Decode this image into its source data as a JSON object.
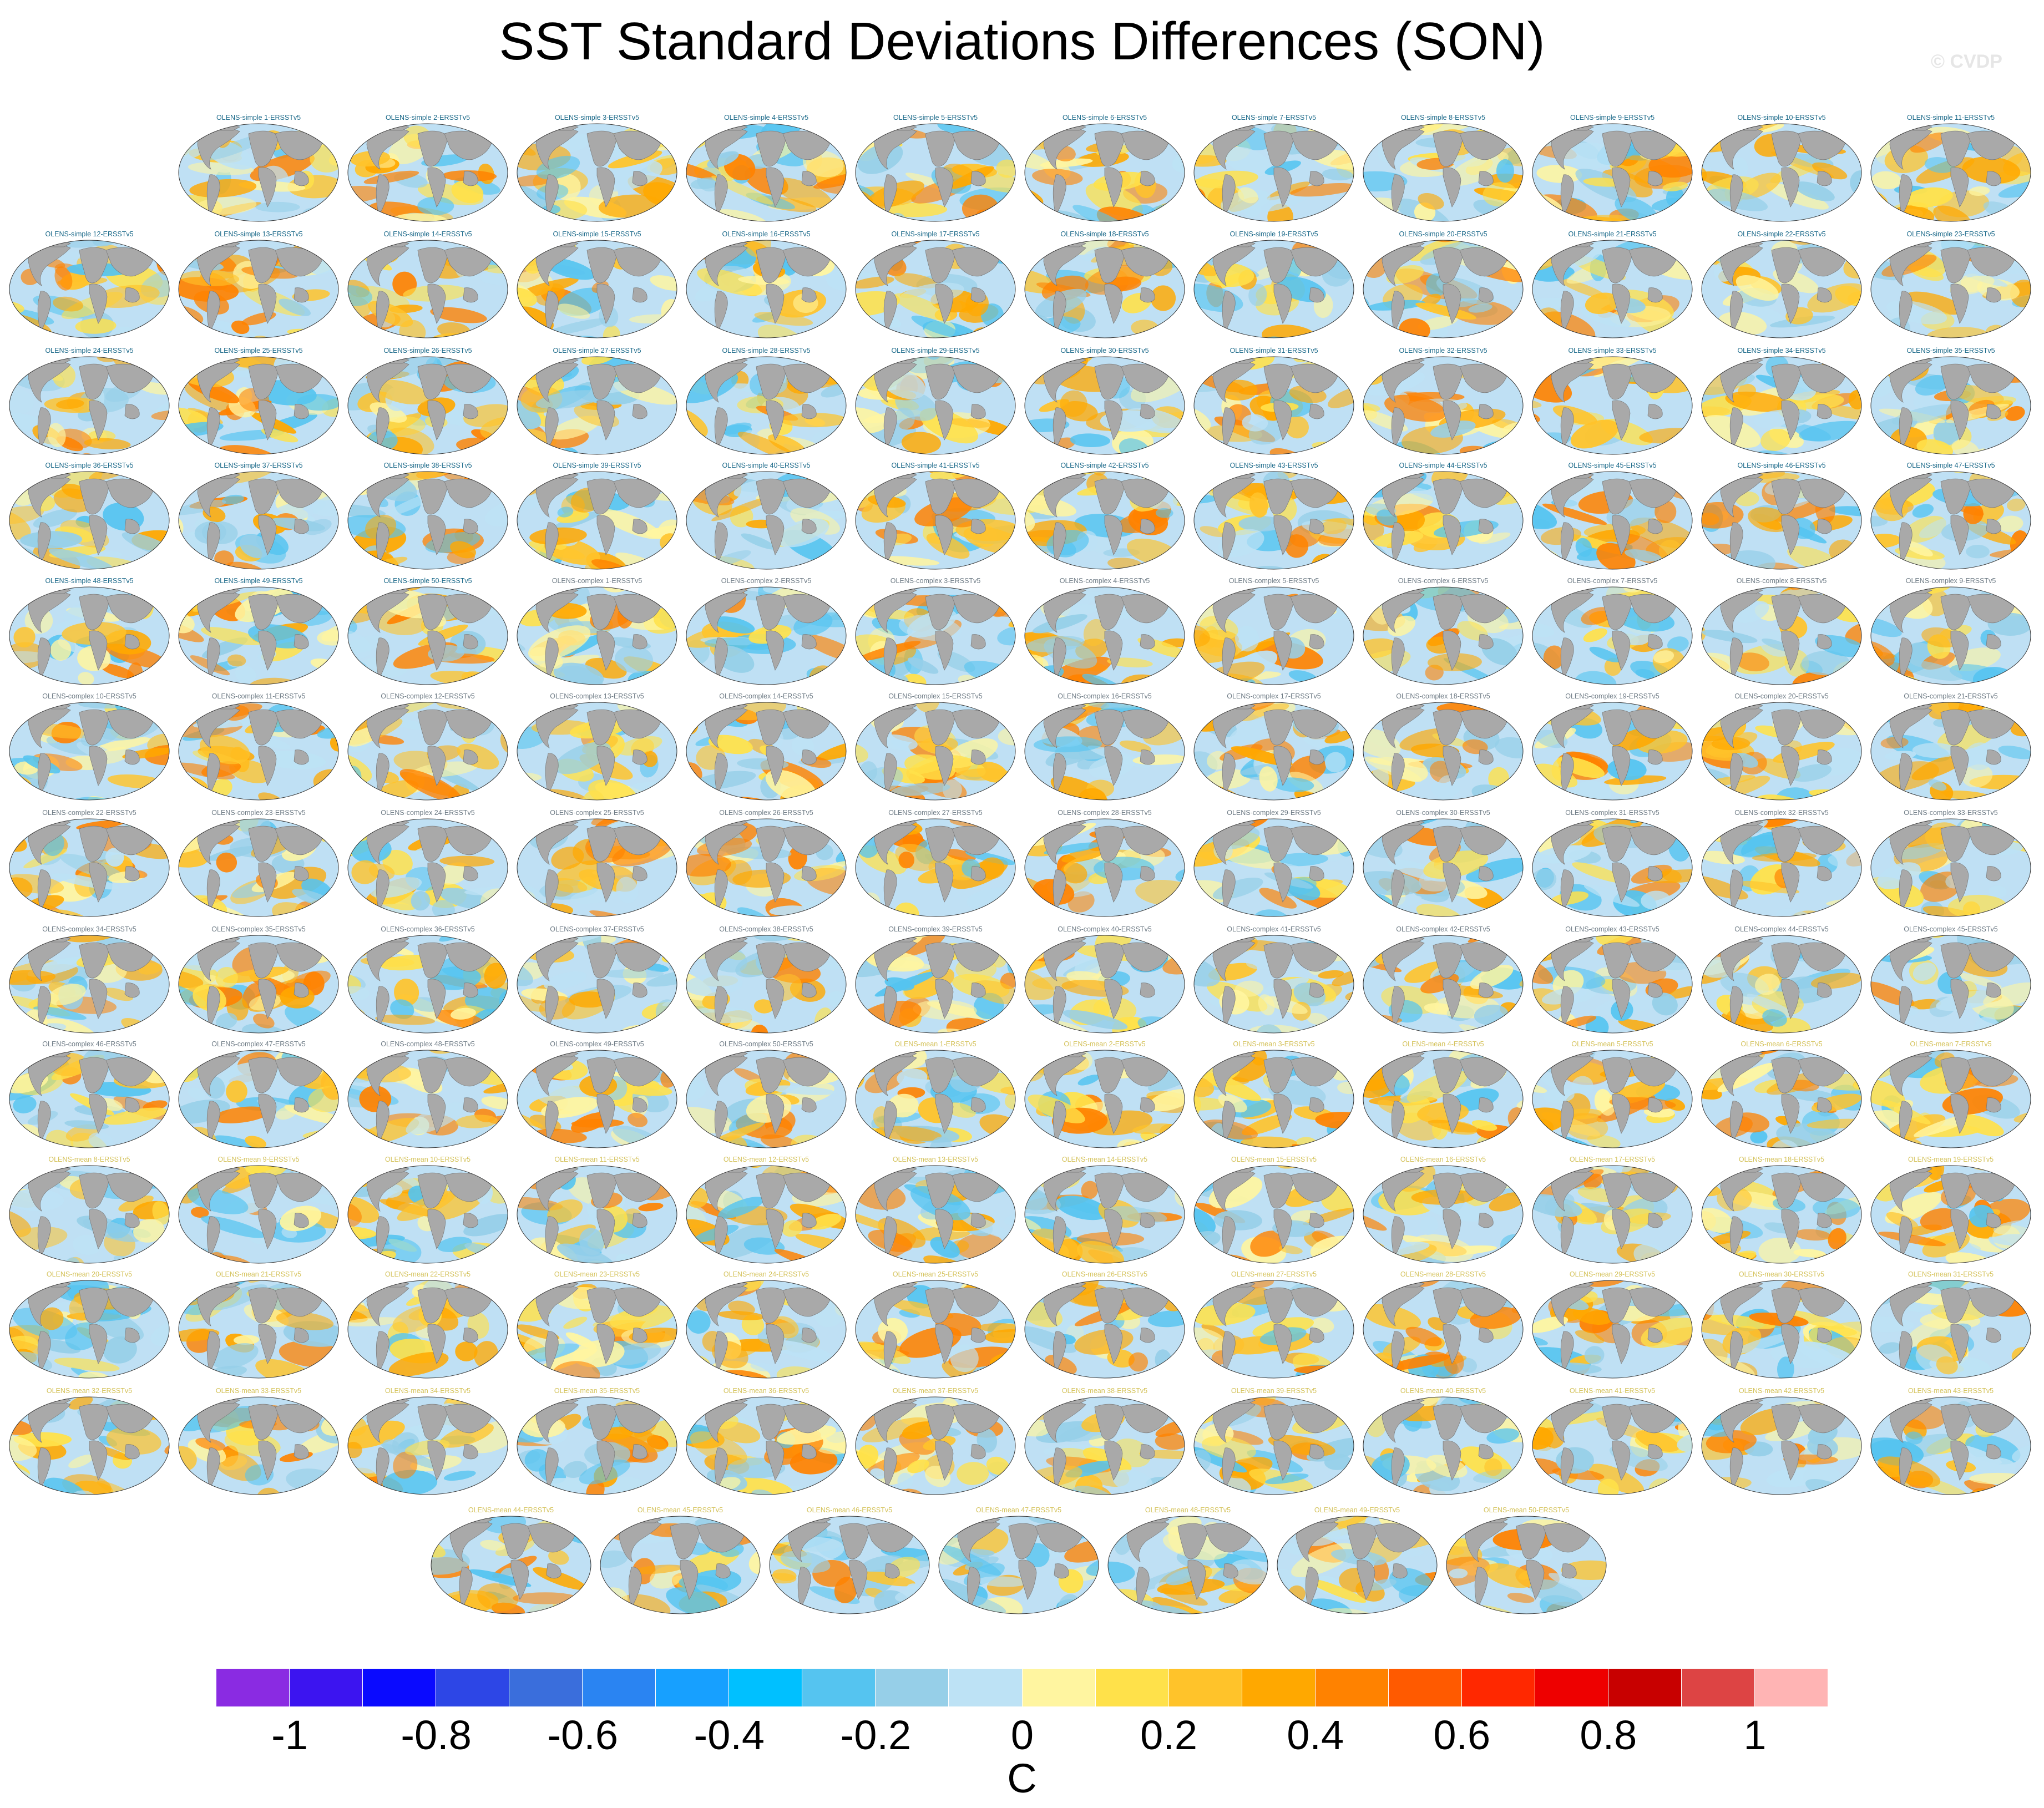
{
  "title": "SST Standard Deviations Differences (SON)",
  "copyright": "© CVDP",
  "colors": {
    "land": "#a9a9a9",
    "simple_title": "#1c6a8a",
    "complex_title": "#6f7c86",
    "mean_title": "#d4c25a",
    "ocean_base": "#bfe0f4"
  },
  "panel_icon": "world-map-icon",
  "panels": [
    "OLENS-simple 1-ERSSTv5",
    "OLENS-simple 2-ERSSTv5",
    "OLENS-simple 3-ERSSTv5",
    "OLENS-simple 4-ERSSTv5",
    "OLENS-simple 5-ERSSTv5",
    "OLENS-simple 6-ERSSTv5",
    "OLENS-simple 7-ERSSTv5",
    "OLENS-simple 8-ERSSTv5",
    "OLENS-simple 9-ERSSTv5",
    "OLENS-simple 10-ERSSTv5",
    "OLENS-simple 11-ERSSTv5",
    "OLENS-simple 12-ERSSTv5",
    "OLENS-simple 13-ERSSTv5",
    "OLENS-simple 14-ERSSTv5",
    "OLENS-simple 15-ERSSTv5",
    "OLENS-simple 16-ERSSTv5",
    "OLENS-simple 17-ERSSTv5",
    "OLENS-simple 18-ERSSTv5",
    "OLENS-simple 19-ERSSTv5",
    "OLENS-simple 20-ERSSTv5",
    "OLENS-simple 21-ERSSTv5",
    "OLENS-simple 22-ERSSTv5",
    "OLENS-simple 23-ERSSTv5",
    "OLENS-simple 24-ERSSTv5",
    "OLENS-simple 25-ERSSTv5",
    "OLENS-simple 26-ERSSTv5",
    "OLENS-simple 27-ERSSTv5",
    "OLENS-simple 28-ERSSTv5",
    "OLENS-simple 29-ERSSTv5",
    "OLENS-simple 30-ERSSTv5",
    "OLENS-simple 31-ERSSTv5",
    "OLENS-simple 32-ERSSTv5",
    "OLENS-simple 33-ERSSTv5",
    "OLENS-simple 34-ERSSTv5",
    "OLENS-simple 35-ERSSTv5",
    "OLENS-simple 36-ERSSTv5",
    "OLENS-simple 37-ERSSTv5",
    "OLENS-simple 38-ERSSTv5",
    "OLENS-simple 39-ERSSTv5",
    "OLENS-simple 40-ERSSTv5",
    "OLENS-simple 41-ERSSTv5",
    "OLENS-simple 42-ERSSTv5",
    "OLENS-simple 43-ERSSTv5",
    "OLENS-simple 44-ERSSTv5",
    "OLENS-simple 45-ERSSTv5",
    "OLENS-simple 46-ERSSTv5",
    "OLENS-simple 47-ERSSTv5",
    "OLENS-simple 48-ERSSTv5",
    "OLENS-simple 49-ERSSTv5",
    "OLENS-simple 50-ERSSTv5",
    "OLENS-complex 1-ERSSTv5",
    "OLENS-complex 2-ERSSTv5",
    "OLENS-complex 3-ERSSTv5",
    "OLENS-complex 4-ERSSTv5",
    "OLENS-complex 5-ERSSTv5",
    "OLENS-complex 6-ERSSTv5",
    "OLENS-complex 7-ERSSTv5",
    "OLENS-complex 8-ERSSTv5",
    "OLENS-complex 9-ERSSTv5",
    "OLENS-complex 10-ERSSTv5",
    "OLENS-complex 11-ERSSTv5",
    "OLENS-complex 12-ERSSTv5",
    "OLENS-complex 13-ERSSTv5",
    "OLENS-complex 14-ERSSTv5",
    "OLENS-complex 15-ERSSTv5",
    "OLENS-complex 16-ERSSTv5",
    "OLENS-complex 17-ERSSTv5",
    "OLENS-complex 18-ERSSTv5",
    "OLENS-complex 19-ERSSTv5",
    "OLENS-complex 20-ERSSTv5",
    "OLENS-complex 21-ERSSTv5",
    "OLENS-complex 22-ERSSTv5",
    "OLENS-complex 23-ERSSTv5",
    "OLENS-complex 24-ERSSTv5",
    "OLENS-complex 25-ERSSTv5",
    "OLENS-complex 26-ERSSTv5",
    "OLENS-complex 27-ERSSTv5",
    "OLENS-complex 28-ERSSTv5",
    "OLENS-complex 29-ERSSTv5",
    "OLENS-complex 30-ERSSTv5",
    "OLENS-complex 31-ERSSTv5",
    "OLENS-complex 32-ERSSTv5",
    "OLENS-complex 33-ERSSTv5",
    "OLENS-complex 34-ERSSTv5",
    "OLENS-complex 35-ERSSTv5",
    "OLENS-complex 36-ERSSTv5",
    "OLENS-complex 37-ERSSTv5",
    "OLENS-complex 38-ERSSTv5",
    "OLENS-complex 39-ERSSTv5",
    "OLENS-complex 40-ERSSTv5",
    "OLENS-complex 41-ERSSTv5",
    "OLENS-complex 42-ERSSTv5",
    "OLENS-complex 43-ERSSTv5",
    "OLENS-complex 44-ERSSTv5",
    "OLENS-complex 45-ERSSTv5",
    "OLENS-complex 46-ERSSTv5",
    "OLENS-complex 47-ERSSTv5",
    "OLENS-complex 48-ERSSTv5",
    "OLENS-complex 49-ERSSTv5",
    "OLENS-complex 50-ERSSTv5",
    "OLENS-mean 1-ERSSTv5",
    "OLENS-mean 2-ERSSTv5",
    "OLENS-mean 3-ERSSTv5",
    "OLENS-mean 4-ERSSTv5",
    "OLENS-mean 5-ERSSTv5",
    "OLENS-mean 6-ERSSTv5",
    "OLENS-mean 7-ERSSTv5",
    "OLENS-mean 8-ERSSTv5",
    "OLENS-mean 9-ERSSTv5",
    "OLENS-mean 10-ERSSTv5",
    "OLENS-mean 11-ERSSTv5",
    "OLENS-mean 12-ERSSTv5",
    "OLENS-mean 13-ERSSTv5",
    "OLENS-mean 14-ERSSTv5",
    "OLENS-mean 15-ERSSTv5",
    "OLENS-mean 16-ERSSTv5",
    "OLENS-mean 17-ERSSTv5",
    "OLENS-mean 18-ERSSTv5",
    "OLENS-mean 19-ERSSTv5",
    "OLENS-mean 20-ERSSTv5",
    "OLENS-mean 21-ERSSTv5",
    "OLENS-mean 22-ERSSTv5",
    "OLENS-mean 23-ERSSTv5",
    "OLENS-mean 24-ERSSTv5",
    "OLENS-mean 25-ERSSTv5",
    "OLENS-mean 26-ERSSTv5",
    "OLENS-mean 27-ERSSTv5",
    "OLENS-mean 28-ERSSTv5",
    "OLENS-mean 29-ERSSTv5",
    "OLENS-mean 30-ERSSTv5",
    "OLENS-mean 31-ERSSTv5",
    "OLENS-mean 32-ERSSTv5",
    "OLENS-mean 33-ERSSTv5",
    "OLENS-mean 34-ERSSTv5",
    "OLENS-mean 35-ERSSTv5",
    "OLENS-mean 36-ERSSTv5",
    "OLENS-mean 37-ERSSTv5",
    "OLENS-mean 38-ERSSTv5",
    "OLENS-mean 39-ERSSTv5",
    "OLENS-mean 40-ERSSTv5",
    "OLENS-mean 41-ERSSTv5",
    "OLENS-mean 42-ERSSTv5",
    "OLENS-mean 43-ERSSTv5",
    "OLENS-mean 44-ERSSTv5",
    "OLENS-mean 45-ERSSTv5",
    "OLENS-mean 46-ERSSTv5",
    "OLENS-mean 47-ERSSTv5",
    "OLENS-mean 48-ERSSTv5",
    "OLENS-mean 49-ERSSTv5",
    "OLENS-mean 50-ERSSTv5"
  ],
  "colorbar": {
    "colors": [
      "#8a2be2",
      "#3c14f0",
      "#0a0aff",
      "#2d46e6",
      "#3a6edc",
      "#2a84f2",
      "#17a0ff",
      "#00c0ff",
      "#55c4f0",
      "#96cfe8",
      "#bde2f5",
      "#fff5a0",
      "#ffe14a",
      "#ffc32a",
      "#ffa800",
      "#ff8200",
      "#ff5a00",
      "#ff2800",
      "#ee0000",
      "#c80000",
      "#dd4444",
      "#ffb4b4"
    ],
    "labels": [
      "-1",
      "-0.8",
      "-0.6",
      "-0.4",
      "-0.2",
      "0",
      "0.2",
      "0.4",
      "0.6",
      "0.8",
      "1"
    ],
    "units": "C"
  }
}
